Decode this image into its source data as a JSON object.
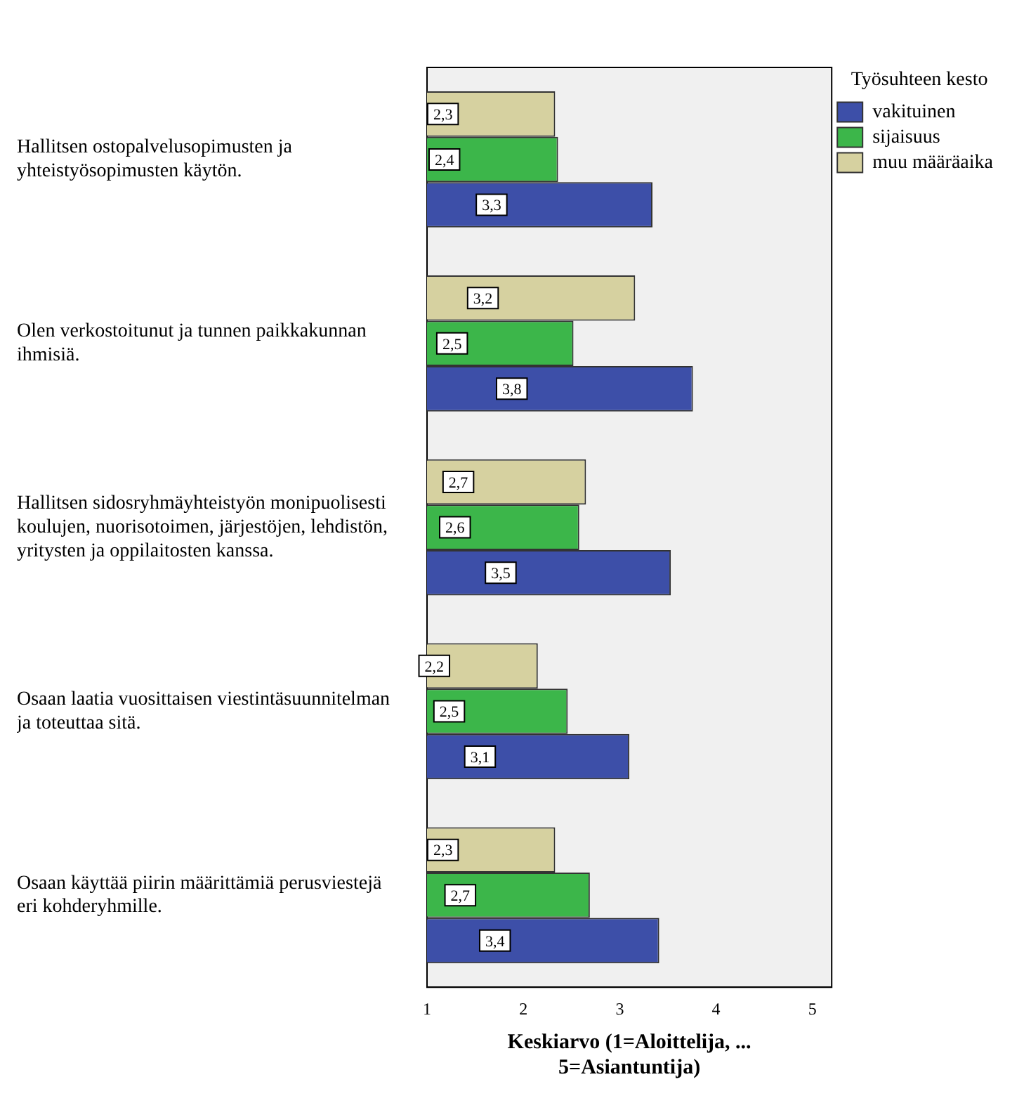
{
  "chart_data": {
    "type": "bar",
    "orientation": "horizontal",
    "xlabel": "Keskiarvo (1=Aloittelija, ... 5=Asiantuntija)",
    "legend_title": "Työsuhteen kesto",
    "legend": "top right",
    "grid": false,
    "categories": [
      "Hallitsen ostopalvelusopimusten ja yhteistyösopimusten käytön.",
      "Olen verkostoitunut ja tunnen paikkakunnan ihmisiä.",
      "Hallitsen sidosryhmäyhteistyön monipuolisesti koulujen, nuorisotoimen, järjestöjen, lehdistön, yritysten ja oppilaitosten kanssa.",
      "Osaan laatia vuosittaisen viestintäsuunnitelman ja toteuttaa sitä.",
      "Osaan käyttää piirin määrittämiä perusviestejä eri kohderyhmille."
    ],
    "xlim": [
      1,
      5.2
    ],
    "xticks": [
      1,
      2,
      3,
      4,
      5
    ],
    "series": [
      {
        "name": "vakituinen",
        "color": "#3d4fa8",
        "values": [
          3.34,
          3.76,
          3.53,
          3.1,
          3.41
        ],
        "value_labels": [
          "3,3",
          "3,8",
          "3,5",
          "3,1",
          "3,4"
        ]
      },
      {
        "name": "sijaisuus",
        "color": "#3cb64a",
        "values": [
          2.36,
          2.52,
          2.58,
          2.46,
          2.69
        ],
        "value_labels": [
          "2,4",
          "2,5",
          "2,6",
          "2,5",
          "2,7"
        ]
      },
      {
        "name": "muu määräaika",
        "color": "#d6d1a0",
        "values": [
          2.33,
          3.16,
          2.65,
          2.15,
          2.33
        ],
        "value_labels": [
          "2,3",
          "3,2",
          "2,7",
          "2,2",
          "2,3"
        ]
      }
    ]
  }
}
